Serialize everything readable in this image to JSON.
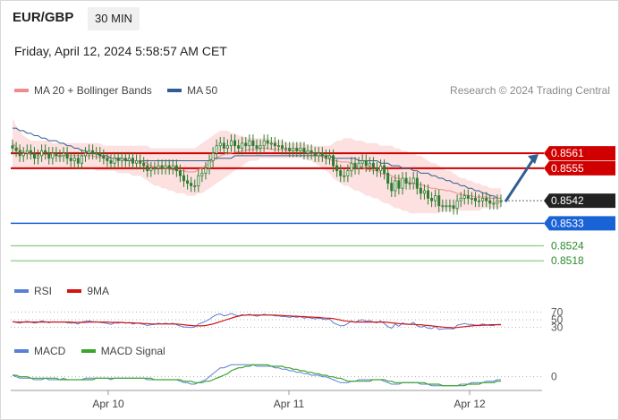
{
  "header": {
    "symbol": "EUR/GBP",
    "timeframe": "30 MIN"
  },
  "datetime": "Friday, April 12, 2024 5:58:57 AM CET",
  "credit": "Research © 2024 Trading Central",
  "colors": {
    "ma20": "#f08c8c",
    "bands": "#fcd6d6",
    "ma50": "#2f5e93",
    "candle": "#2e7d32",
    "resistance": "#d00000",
    "support_blue": "#1a63d6",
    "support_green": "#8bc98b",
    "last_price": "#222222",
    "rsi": "#5a7fd6",
    "rsi_ma": "#d41414",
    "macd": "#5a7fd6",
    "macd_signal": "#3aa52a"
  },
  "chart_data": [
    {
      "type": "candlestick",
      "legend": [
        {
          "name": "MA 20 + Bollinger Bands"
        },
        {
          "name": "MA 50"
        }
      ],
      "x_labels": [
        "Apr 10",
        "Apr 11",
        "Apr 12"
      ],
      "ylim": [
        0.8512,
        0.858
      ],
      "levels": [
        {
          "value": 0.8561,
          "label": "0.8561",
          "kind": "resistance"
        },
        {
          "value": 0.8555,
          "label": "0.8555",
          "kind": "resistance"
        },
        {
          "value": 0.8542,
          "label": "0.8542",
          "kind": "last_price"
        },
        {
          "value": 0.8533,
          "label": "0.8533",
          "kind": "support_blue"
        },
        {
          "value": 0.8524,
          "label": "0.8524",
          "kind": "support_green"
        },
        {
          "value": 0.8518,
          "label": "0.8518",
          "kind": "support_green"
        }
      ],
      "close": [
        0.8563,
        0.8562,
        0.856,
        0.8561,
        0.8562,
        0.8561,
        0.8559,
        0.856,
        0.8562,
        0.8561,
        0.8559,
        0.8561,
        0.856,
        0.856,
        0.8561,
        0.8559,
        0.8558,
        0.8559,
        0.8557,
        0.856,
        0.8561,
        0.8562,
        0.8561,
        0.8561,
        0.856,
        0.8559,
        0.8558,
        0.8557,
        0.8559,
        0.8558,
        0.8559,
        0.8558,
        0.8559,
        0.8557,
        0.8558,
        0.8557,
        0.8556,
        0.8554,
        0.8555,
        0.8555,
        0.8556,
        0.8555,
        0.8556,
        0.8555,
        0.8556,
        0.8554,
        0.8552,
        0.855,
        0.8549,
        0.8548,
        0.8548,
        0.8552,
        0.8553,
        0.8555,
        0.8558,
        0.8561,
        0.8564,
        0.8565,
        0.8563,
        0.8564,
        0.8566,
        0.8564,
        0.8563,
        0.8565,
        0.8564,
        0.8566,
        0.8564,
        0.8563,
        0.8564,
        0.8566,
        0.8565,
        0.8565,
        0.8564,
        0.8564,
        0.8563,
        0.8563,
        0.8562,
        0.8563,
        0.8562,
        0.8563,
        0.8561,
        0.8562,
        0.8561,
        0.856,
        0.8561,
        0.856,
        0.8559,
        0.856,
        0.8556,
        0.8554,
        0.8552,
        0.8552,
        0.8554,
        0.8557,
        0.8555,
        0.8557,
        0.8558,
        0.8556,
        0.8557,
        0.8555,
        0.8554,
        0.8556,
        0.8553,
        0.8549,
        0.8546,
        0.855,
        0.8547,
        0.8551,
        0.8549,
        0.8549,
        0.8551,
        0.8547,
        0.8545,
        0.8546,
        0.8543,
        0.8542,
        0.8544,
        0.854,
        0.854,
        0.854,
        0.854,
        0.8539,
        0.8542,
        0.8543,
        0.8544,
        0.8543,
        0.8543,
        0.8542,
        0.8542,
        0.8543,
        0.8542,
        0.8541,
        0.8541,
        0.8542,
        0.8542
      ],
      "ma50": [
        0.8571,
        0.8571,
        0.857,
        0.857,
        0.8569,
        0.8569,
        0.8568,
        0.8568,
        0.8567,
        0.8567,
        0.8566,
        0.8566,
        0.8566,
        0.8565,
        0.8565,
        0.8564,
        0.8564,
        0.8563,
        0.8563,
        0.8562,
        0.8562,
        0.8561,
        0.8561,
        0.8561,
        0.856,
        0.856,
        0.856,
        0.8559,
        0.8559,
        0.8559,
        0.8559,
        0.8558,
        0.8558,
        0.8558,
        0.8558,
        0.8558,
        0.8558,
        0.8558,
        0.8558,
        0.8558,
        0.8558,
        0.8558,
        0.8558,
        0.8558,
        0.8558,
        0.8558,
        0.8558,
        0.8558,
        0.8558,
        0.8558,
        0.8558,
        0.8558,
        0.8558,
        0.8558,
        0.8558,
        0.8559,
        0.8559,
        0.8559,
        0.8559,
        0.8559,
        0.8559,
        0.856,
        0.856,
        0.856,
        0.856,
        0.856,
        0.856,
        0.856,
        0.856,
        0.856,
        0.856,
        0.856,
        0.856,
        0.856,
        0.856,
        0.856,
        0.856,
        0.856,
        0.856,
        0.856,
        0.856,
        0.856,
        0.856,
        0.856,
        0.856,
        0.856,
        0.856,
        0.856,
        0.8559,
        0.8559,
        0.8559,
        0.8559,
        0.8559,
        0.8559,
        0.8559,
        0.8558,
        0.8558,
        0.8558,
        0.8558,
        0.8558,
        0.8558,
        0.8557,
        0.8557,
        0.8557,
        0.8556,
        0.8556,
        0.8556,
        0.8555,
        0.8555,
        0.8555,
        0.8554,
        0.8554,
        0.8553,
        0.8553,
        0.8553,
        0.8552,
        0.8552,
        0.8551,
        0.8551,
        0.855,
        0.855,
        0.8549,
        0.8549,
        0.8548,
        0.8548,
        0.8547,
        0.8547,
        0.8546,
        0.8546,
        0.8545,
        0.8545,
        0.8544,
        0.8544,
        0.8543,
        0.8543
      ],
      "bb_upper": [
        0.8575,
        0.8572,
        0.857,
        0.8568,
        0.8567,
        0.8566,
        0.8566,
        0.8566,
        0.8566,
        0.8566,
        0.8566,
        0.8565,
        0.8565,
        0.8565,
        0.8565,
        0.8565,
        0.8565,
        0.8565,
        0.8565,
        0.8565,
        0.8565,
        0.8565,
        0.8565,
        0.8565,
        0.8565,
        0.8564,
        0.8564,
        0.8564,
        0.8564,
        0.8564,
        0.8564,
        0.8564,
        0.8564,
        0.8564,
        0.8564,
        0.8564,
        0.8564,
        0.8564,
        0.8563,
        0.8563,
        0.8563,
        0.8563,
        0.8563,
        0.8563,
        0.8563,
        0.8563,
        0.8563,
        0.8563,
        0.8563,
        0.8563,
        0.8563,
        0.8564,
        0.8565,
        0.8566,
        0.8567,
        0.8568,
        0.8569,
        0.857,
        0.857,
        0.857,
        0.8569,
        0.8569,
        0.8568,
        0.8568,
        0.8567,
        0.8567,
        0.8567,
        0.8567,
        0.8567,
        0.8567,
        0.8567,
        0.8566,
        0.8566,
        0.8566,
        0.8566,
        0.8565,
        0.8565,
        0.8565,
        0.8565,
        0.8565,
        0.8565,
        0.8564,
        0.8564,
        0.8564,
        0.8564,
        0.8564,
        0.8564,
        0.8564,
        0.8565,
        0.8566,
        0.8566,
        0.8567,
        0.8567,
        0.8567,
        0.8566,
        0.8566,
        0.8566,
        0.8565,
        0.8565,
        0.8565,
        0.8565,
        0.8564,
        0.8564,
        0.8564,
        0.8564,
        0.8563,
        0.8563,
        0.8562,
        0.8562,
        0.8561,
        0.8561,
        0.856,
        0.856,
        0.8559,
        0.8558,
        0.8557,
        0.8557,
        0.8556,
        0.8555,
        0.8554,
        0.8554,
        0.8553,
        0.8552,
        0.8551,
        0.8551,
        0.855,
        0.855,
        0.8549,
        0.8549,
        0.8548,
        0.8548,
        0.8547,
        0.8547,
        0.8547,
        0.8547
      ],
      "bb_lower": [
        0.8555,
        0.8555,
        0.8555,
        0.8555,
        0.8555,
        0.8555,
        0.8555,
        0.8555,
        0.8555,
        0.8555,
        0.8555,
        0.8555,
        0.8555,
        0.8555,
        0.8555,
        0.8555,
        0.8555,
        0.8555,
        0.8555,
        0.8555,
        0.8555,
        0.8555,
        0.8555,
        0.8554,
        0.8554,
        0.8554,
        0.8554,
        0.8554,
        0.8554,
        0.8553,
        0.8553,
        0.8553,
        0.8553,
        0.8552,
        0.8552,
        0.8552,
        0.8551,
        0.855,
        0.8549,
        0.8548,
        0.8548,
        0.8547,
        0.8547,
        0.8546,
        0.8546,
        0.8545,
        0.8545,
        0.8545,
        0.8544,
        0.8544,
        0.8544,
        0.8545,
        0.8545,
        0.8546,
        0.8547,
        0.8548,
        0.8549,
        0.855,
        0.8551,
        0.8552,
        0.8553,
        0.8554,
        0.8555,
        0.8556,
        0.8557,
        0.8558,
        0.8558,
        0.8558,
        0.8559,
        0.8559,
        0.8559,
        0.8559,
        0.8559,
        0.8559,
        0.8559,
        0.8559,
        0.8559,
        0.8559,
        0.8559,
        0.8559,
        0.8559,
        0.8558,
        0.8558,
        0.8557,
        0.8556,
        0.8555,
        0.8554,
        0.8553,
        0.8551,
        0.855,
        0.8549,
        0.8548,
        0.8548,
        0.8547,
        0.8546,
        0.8546,
        0.8545,
        0.8544,
        0.8544,
        0.8543,
        0.8543,
        0.8542,
        0.8541,
        0.8541,
        0.854,
        0.8539,
        0.8539,
        0.8538,
        0.8538,
        0.8537,
        0.8537,
        0.8537,
        0.8537,
        0.8537,
        0.8537,
        0.8537,
        0.8537,
        0.8537,
        0.8538,
        0.8538,
        0.8538,
        0.8538,
        0.8538,
        0.8538,
        0.8538,
        0.8538,
        0.8538,
        0.8538,
        0.8538,
        0.8539,
        0.8539,
        0.8539,
        0.8539,
        0.8539,
        0.8539
      ],
      "forecast_arrow": {
        "from": 0.8542,
        "to": 0.8561
      }
    },
    {
      "type": "line",
      "legend": [
        {
          "name": "RSI"
        },
        {
          "name": "9MA"
        }
      ],
      "ylim": [
        20,
        80
      ],
      "ticks": [
        "70",
        "50",
        "30"
      ],
      "rsi": [
        45,
        43,
        41,
        44,
        46,
        44,
        41,
        43,
        47,
        45,
        42,
        45,
        44,
        44,
        45,
        42,
        41,
        42,
        39,
        44,
        46,
        47,
        45,
        45,
        43,
        42,
        40,
        38,
        42,
        41,
        43,
        41,
        43,
        39,
        41,
        40,
        38,
        35,
        37,
        38,
        41,
        39,
        41,
        39,
        41,
        37,
        34,
        31,
        31,
        30,
        31,
        39,
        42,
        46,
        51,
        58,
        63,
        65,
        60,
        62,
        66,
        62,
        60,
        63,
        61,
        64,
        61,
        59,
        61,
        64,
        62,
        62,
        60,
        60,
        58,
        58,
        56,
        58,
        56,
        58,
        54,
        56,
        54,
        52,
        54,
        52,
        50,
        52,
        42,
        38,
        34,
        35,
        40,
        47,
        43,
        48,
        50,
        46,
        48,
        44,
        42,
        47,
        40,
        32,
        28,
        39,
        33,
        42,
        38,
        38,
        43,
        34,
        31,
        33,
        28,
        27,
        33,
        25,
        26,
        27,
        27,
        26,
        36,
        38,
        40,
        38,
        38,
        36,
        36,
        39,
        37,
        35,
        35,
        38,
        38
      ],
      "ma9": [
        45,
        44,
        44,
        44,
        44,
        44,
        44,
        44,
        44,
        44,
        44,
        44,
        44,
        44,
        44,
        44,
        44,
        43,
        43,
        43,
        43,
        44,
        44,
        44,
        44,
        44,
        44,
        43,
        43,
        43,
        43,
        42,
        42,
        42,
        41,
        41,
        40,
        40,
        39,
        39,
        39,
        39,
        39,
        39,
        39,
        39,
        38,
        37,
        36,
        35,
        34,
        34,
        34,
        35,
        37,
        39,
        42,
        45,
        48,
        51,
        54,
        57,
        59,
        61,
        62,
        62,
        62,
        62,
        62,
        62,
        62,
        62,
        62,
        61,
        61,
        60,
        60,
        59,
        59,
        58,
        58,
        57,
        57,
        56,
        56,
        55,
        54,
        54,
        53,
        51,
        49,
        47,
        46,
        45,
        44,
        44,
        44,
        44,
        44,
        44,
        44,
        44,
        44,
        43,
        42,
        41,
        40,
        39,
        39,
        38,
        38,
        37,
        37,
        36,
        35,
        34,
        33,
        32,
        31,
        30,
        30,
        29,
        30,
        31,
        32,
        33,
        34,
        35,
        35,
        36,
        36,
        37,
        37,
        37,
        37
      ]
    },
    {
      "type": "line",
      "legend": [
        {
          "name": "MACD"
        },
        {
          "name": "MACD Signal"
        }
      ],
      "ylim": [
        -0.0008,
        0.001
      ],
      "ticks": [
        "0"
      ],
      "macd": [
        0.0001,
        0.0,
        -0.0001,
        -0.0001,
        -0.0001,
        -0.0001,
        -0.0002,
        -0.0002,
        -0.0002,
        -0.0001,
        -0.0002,
        -0.0002,
        -0.0002,
        -0.0002,
        -0.0001,
        -0.0002,
        -0.0002,
        -0.0002,
        -0.0002,
        -0.0002,
        -0.0001,
        -0.0001,
        -0.0001,
        -0.0001,
        -0.0001,
        -0.0001,
        -0.0001,
        -0.0002,
        -0.0001,
        -0.0001,
        -0.0001,
        -0.0001,
        -0.0001,
        -0.0001,
        -0.0001,
        -0.0001,
        -0.0001,
        -0.0002,
        -0.0002,
        -0.0002,
        -0.0002,
        -0.0002,
        -0.0002,
        -0.0002,
        -0.0002,
        -0.0002,
        -0.0003,
        -0.0004,
        -0.0004,
        -0.0005,
        -0.0005,
        -0.0004,
        -0.0003,
        -0.0002,
        0.0,
        0.0002,
        0.0004,
        0.0006,
        0.0006,
        0.0007,
        0.0008,
        0.0008,
        0.0008,
        0.0008,
        0.0008,
        0.0008,
        0.0008,
        0.0007,
        0.0007,
        0.0007,
        0.0007,
        0.0007,
        0.0006,
        0.0006,
        0.0005,
        0.0005,
        0.0004,
        0.0004,
        0.0003,
        0.0003,
        0.0002,
        0.0002,
        0.0001,
        0.0001,
        0.0001,
        0.0,
        0.0,
        -0.0001,
        -0.0002,
        -0.0003,
        -0.0004,
        -0.0004,
        -0.0004,
        -0.0003,
        -0.0003,
        -0.0002,
        -0.0002,
        -0.0002,
        -0.0002,
        -0.0002,
        -0.0002,
        -0.0002,
        -0.0003,
        -0.0004,
        -0.0005,
        -0.0005,
        -0.0005,
        -0.0004,
        -0.0004,
        -0.0004,
        -0.0004,
        -0.0004,
        -0.0005,
        -0.0005,
        -0.0005,
        -0.0006,
        -0.0006,
        -0.0006,
        -0.0006,
        -0.0006,
        -0.0006,
        -0.0006,
        -0.0006,
        -0.0005,
        -0.0005,
        -0.0005,
        -0.0004,
        -0.0004,
        -0.0004,
        -0.0004,
        -0.0003,
        -0.0003,
        -0.0003,
        -0.0002,
        -0.0002
      ],
      "signal": [
        0.0001,
        0.0001,
        0.0,
        0.0,
        0.0,
        -0.0001,
        -0.0001,
        -0.0001,
        -0.0001,
        -0.0001,
        -0.0001,
        -0.0001,
        -0.0001,
        -0.0002,
        -0.0002,
        -0.0002,
        -0.0002,
        -0.0002,
        -0.0002,
        -0.0002,
        -0.0002,
        -0.0002,
        -0.0002,
        -0.0001,
        -0.0001,
        -0.0001,
        -0.0001,
        -0.0001,
        -0.0001,
        -0.0001,
        -0.0001,
        -0.0001,
        -0.0001,
        -0.0001,
        -0.0001,
        -0.0001,
        -0.0001,
        -0.0001,
        -0.0001,
        -0.0002,
        -0.0002,
        -0.0002,
        -0.0002,
        -0.0002,
        -0.0002,
        -0.0002,
        -0.0002,
        -0.0003,
        -0.0003,
        -0.0003,
        -0.0004,
        -0.0004,
        -0.0004,
        -0.0003,
        -0.0003,
        -0.0002,
        -0.0001,
        0.0,
        0.0001,
        0.0002,
        0.0004,
        0.0005,
        0.0006,
        0.0006,
        0.0007,
        0.0007,
        0.0008,
        0.0008,
        0.0008,
        0.0008,
        0.0008,
        0.0007,
        0.0007,
        0.0007,
        0.0007,
        0.0006,
        0.0006,
        0.0005,
        0.0005,
        0.0004,
        0.0004,
        0.0003,
        0.0003,
        0.0002,
        0.0002,
        0.0001,
        0.0001,
        0.0,
        0.0,
        -0.0001,
        -0.0001,
        -0.0002,
        -0.0003,
        -0.0003,
        -0.0003,
        -0.0003,
        -0.0003,
        -0.0003,
        -0.0003,
        -0.0002,
        -0.0002,
        -0.0002,
        -0.0002,
        -0.0003,
        -0.0003,
        -0.0004,
        -0.0004,
        -0.0004,
        -0.0004,
        -0.0004,
        -0.0004,
        -0.0004,
        -0.0004,
        -0.0004,
        -0.0005,
        -0.0005,
        -0.0005,
        -0.0005,
        -0.0006,
        -0.0006,
        -0.0006,
        -0.0006,
        -0.0006,
        -0.0006,
        -0.0006,
        -0.0005,
        -0.0005,
        -0.0005,
        -0.0005,
        -0.0004,
        -0.0004,
        -0.0004,
        -0.0004,
        -0.0003,
        -0.0003
      ]
    }
  ]
}
